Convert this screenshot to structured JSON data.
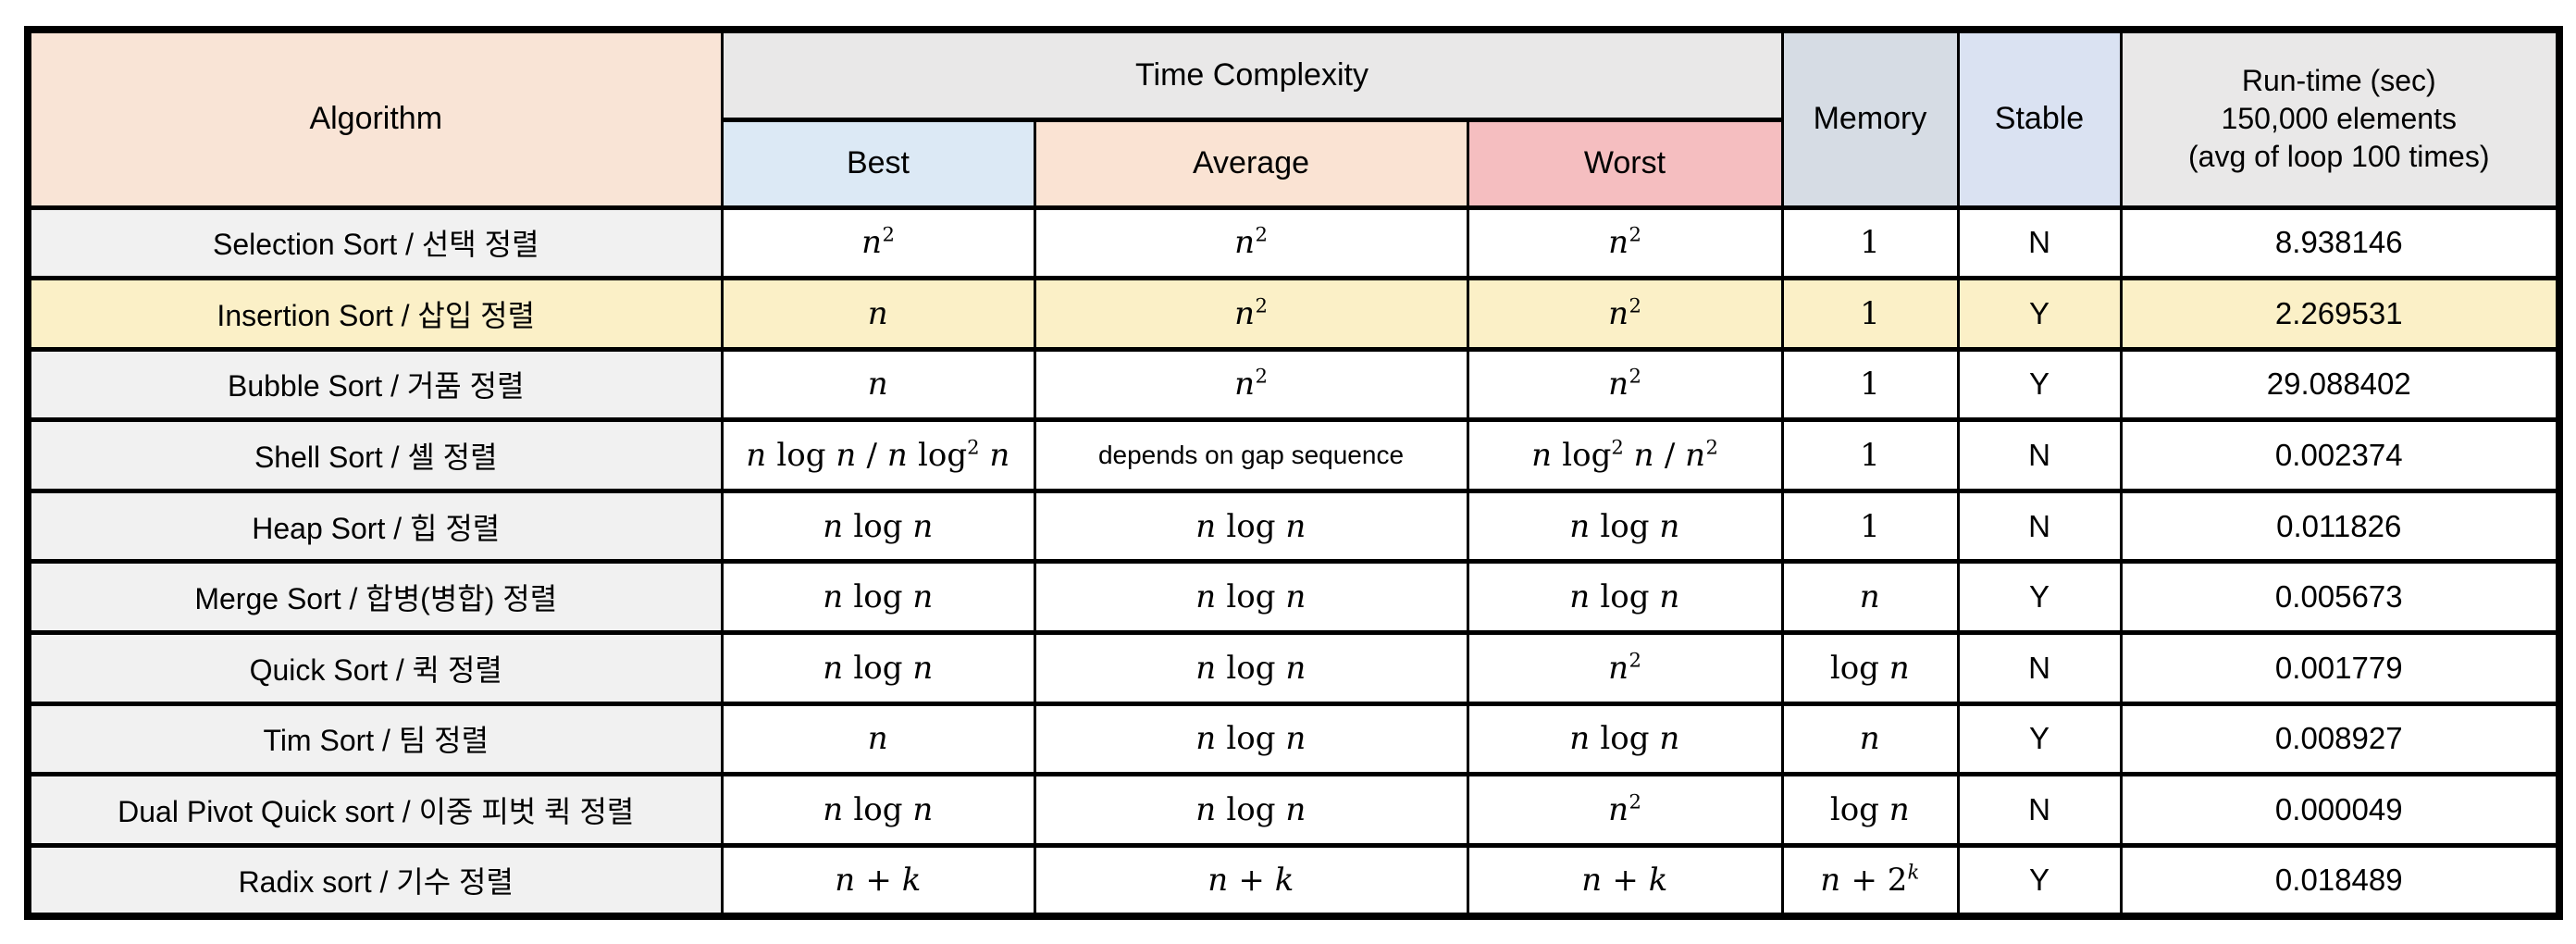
{
  "chart_data": {
    "type": "table",
    "headers": {
      "algorithm": "Algorithm",
      "time_complexity": "Time Complexity",
      "best": "Best",
      "average": "Average",
      "worst": "Worst",
      "memory": "Memory",
      "stable": "Stable",
      "runtime_lines": [
        "Run-time (sec)",
        "150,000 elements",
        "(avg of loop 100 times)"
      ]
    },
    "rows": [
      {
        "name": "Selection Sort / 선택 정렬",
        "best": "n^2",
        "average": "n^2",
        "worst": "n^2",
        "memory": "1",
        "stable": "N",
        "runtime": "8.938146",
        "highlight": false
      },
      {
        "name": "Insertion Sort / 삽입 정렬",
        "best": "n",
        "average": "n^2",
        "worst": "n^2",
        "memory": "1",
        "stable": "Y",
        "runtime": "2.269531",
        "highlight": true
      },
      {
        "name": "Bubble Sort / 거품 정렬",
        "best": "n",
        "average": "n^2",
        "worst": "n^2",
        "memory": "1",
        "stable": "Y",
        "runtime": "29.088402",
        "highlight": false
      },
      {
        "name": "Shell Sort / 셸 정렬",
        "best": "n log n / n log^2 n",
        "average": "depends on gap sequence",
        "worst": "n log^2 n / n^2",
        "memory": "1",
        "stable": "N",
        "runtime": "0.002374",
        "highlight": false
      },
      {
        "name": "Heap Sort / 힙 정렬",
        "best": "n log n",
        "average": "n log n",
        "worst": "n log n",
        "memory": "1",
        "stable": "N",
        "runtime": "0.011826",
        "highlight": false
      },
      {
        "name": "Merge Sort / 합병(병합) 정렬",
        "best": "n log n",
        "average": "n log n",
        "worst": "n log n",
        "memory": "n",
        "stable": "Y",
        "runtime": "0.005673",
        "highlight": false
      },
      {
        "name": "Quick Sort / 퀵 정렬",
        "best": "n log n",
        "average": "n log n",
        "worst": "n^2",
        "memory": "log n",
        "stable": "N",
        "runtime": "0.001779",
        "highlight": false
      },
      {
        "name": "Tim Sort / 팀 정렬",
        "best": "n",
        "average": "n log n",
        "worst": "n log n",
        "memory": "n",
        "stable": "Y",
        "runtime": "0.008927",
        "highlight": false
      },
      {
        "name": "Dual Pivot Quick sort / 이중 피벗 퀵 정렬",
        "best": "n log n",
        "average": "n log n",
        "worst": "n^2",
        "memory": "log n",
        "stable": "N",
        "runtime": "0.000049",
        "highlight": false
      },
      {
        "name": "Radix sort / 기수 정렬",
        "best": "n + k",
        "average": "n + k",
        "worst": "n + k",
        "memory": "n + 2^k",
        "stable": "Y",
        "runtime": "0.018489",
        "highlight": false
      }
    ],
    "layout_hints": {
      "grid": "all-borders",
      "highlight_row": "Insertion Sort / 삽입 정렬"
    }
  },
  "colors": {
    "border": "#000000",
    "algorithm_header_bg": "#f9e4d6",
    "time_complexity_bg": "#e9e8e8",
    "best_bg": "#dce9f5",
    "average_bg": "#fae3d3",
    "worst_bg": "#f5bec0",
    "memory_bg": "#d6dce4",
    "stable_bg": "#dae2f2",
    "runtime_bg": "#e9e8e8",
    "label_bg": "#f1f1f1",
    "highlight_bg": "#fbf0c7",
    "value_bg": "#ffffff"
  }
}
